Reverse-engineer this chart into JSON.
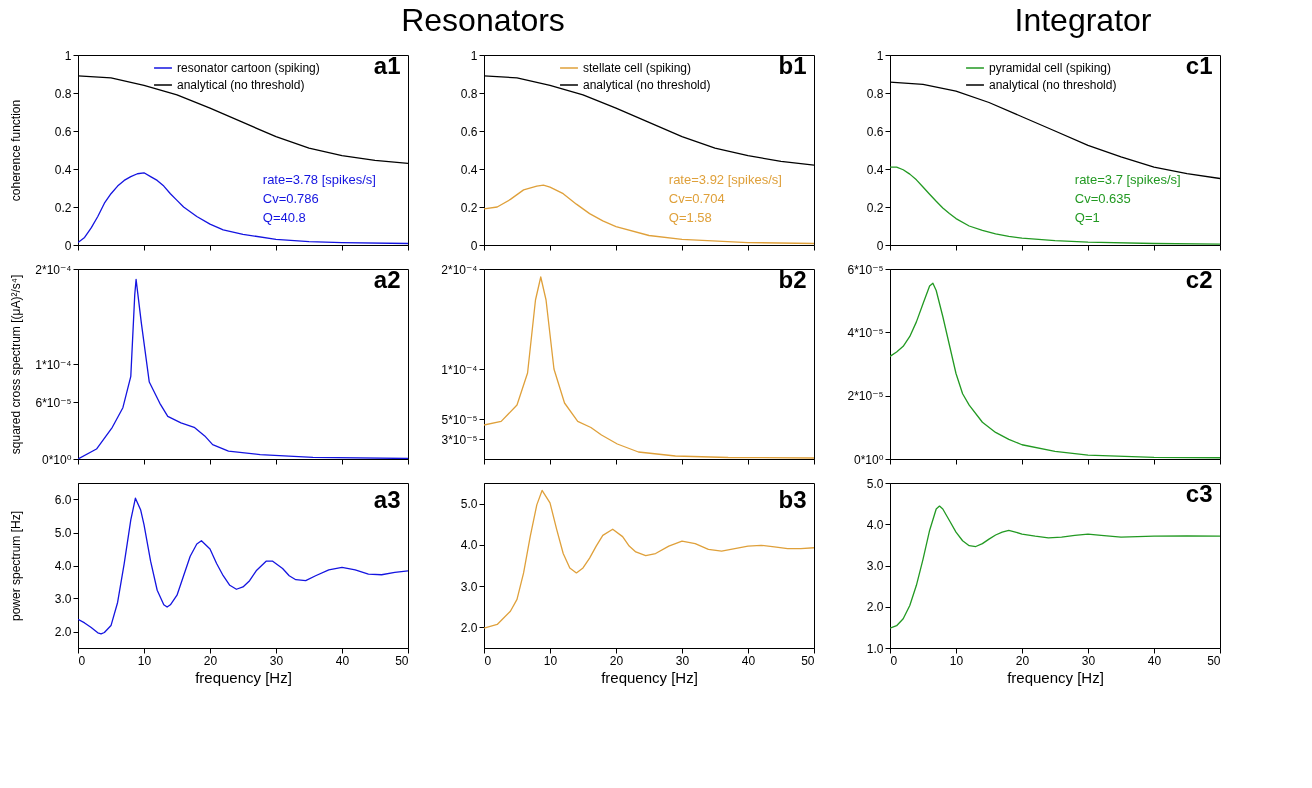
{
  "chart_data": [
    {
      "type": "other",
      "title": "Resonators"
    },
    {
      "type": "other",
      "title": "Integrator"
    },
    {
      "type": "line",
      "title": "a1",
      "ylabel": "coherence function",
      "xlim": [
        0,
        50
      ],
      "xticks": [
        0,
        10,
        20,
        30,
        40,
        50
      ],
      "ylim": [
        0,
        1
      ],
      "yticks": [
        0,
        0.2,
        0.4,
        0.6,
        0.8,
        1
      ],
      "tick_labels": "y",
      "legend": "top right",
      "annotations": [
        "rate=3.78 [spikes/s]",
        "Cv=0.786",
        "Q=40.8"
      ],
      "series": [
        {
          "name": "resonator cartoon (spiking)",
          "color": "#1414e0",
          "x": [
            0,
            1,
            2,
            3,
            4,
            5,
            6,
            7,
            8,
            9,
            10,
            11,
            12,
            13,
            14,
            15,
            16,
            18,
            20,
            22,
            25,
            30,
            35,
            40,
            50
          ],
          "values": [
            0.013,
            0.04,
            0.09,
            0.15,
            0.22,
            0.27,
            0.31,
            0.34,
            0.36,
            0.375,
            0.38,
            0.36,
            0.34,
            0.31,
            0.27,
            0.235,
            0.2,
            0.15,
            0.11,
            0.08,
            0.056,
            0.03,
            0.018,
            0.013,
            0.008
          ]
        },
        {
          "name": "analytical (no threshold)",
          "color": "#000000",
          "x": [
            0,
            5,
            10,
            15,
            20,
            25,
            30,
            35,
            40,
            45,
            50
          ],
          "values": [
            0.89,
            0.88,
            0.84,
            0.79,
            0.72,
            0.645,
            0.57,
            0.51,
            0.47,
            0.445,
            0.43
          ]
        }
      ]
    },
    {
      "type": "line",
      "title": "b1",
      "xlim": [
        0,
        50
      ],
      "xticks": [
        0,
        10,
        20,
        30,
        40,
        50
      ],
      "ylim": [
        0,
        1
      ],
      "yticks": [
        0,
        0.2,
        0.4,
        0.6,
        0.8,
        1
      ],
      "tick_labels": "y",
      "legend": "top right",
      "annotations": [
        "rate=3.92 [spikes/s]",
        "Cv=0.704",
        "Q=1.58"
      ],
      "series": [
        {
          "name": "stellate cell (spiking)",
          "color": "#dfa03a",
          "x": [
            0,
            2,
            4,
            6,
            8,
            9,
            10,
            12,
            14,
            16,
            18,
            20,
            25,
            30,
            40,
            50
          ],
          "values": [
            0.19,
            0.2,
            0.24,
            0.29,
            0.31,
            0.315,
            0.305,
            0.27,
            0.215,
            0.165,
            0.127,
            0.097,
            0.05,
            0.03,
            0.013,
            0.008
          ]
        },
        {
          "name": "analytical (no threshold)",
          "color": "#000000",
          "x": [
            0,
            5,
            10,
            15,
            20,
            25,
            30,
            35,
            40,
            45,
            50
          ],
          "values": [
            0.89,
            0.88,
            0.84,
            0.79,
            0.72,
            0.645,
            0.57,
            0.51,
            0.47,
            0.44,
            0.42
          ]
        }
      ]
    },
    {
      "type": "line",
      "title": "c1",
      "xlim": [
        0,
        50
      ],
      "xticks": [
        0,
        10,
        20,
        30,
        40,
        50
      ],
      "ylim": [
        0,
        1
      ],
      "yticks": [
        0,
        0.2,
        0.4,
        0.6,
        0.8,
        1
      ],
      "tick_labels": "y",
      "legend": "top right",
      "annotations": [
        "rate=3.7 [spikes/s]",
        "Cv=0.635",
        "Q=1"
      ],
      "series": [
        {
          "name": "pyramidal cell (spiking)",
          "color": "#229922",
          "x": [
            0,
            1,
            2,
            3,
            4,
            5,
            6,
            7,
            8,
            9,
            10,
            12,
            14,
            16,
            18,
            20,
            25,
            30,
            40,
            50
          ],
          "values": [
            0.41,
            0.41,
            0.396,
            0.373,
            0.343,
            0.305,
            0.267,
            0.23,
            0.195,
            0.166,
            0.139,
            0.1,
            0.077,
            0.059,
            0.045,
            0.036,
            0.023,
            0.015,
            0.008,
            0.005
          ]
        },
        {
          "name": "analytical (no threshold)",
          "color": "#000000",
          "x": [
            0,
            5,
            10,
            15,
            20,
            25,
            30,
            35,
            40,
            45,
            50
          ],
          "values": [
            0.857,
            0.845,
            0.81,
            0.75,
            0.675,
            0.6,
            0.524,
            0.464,
            0.41,
            0.376,
            0.35
          ]
        }
      ]
    },
    {
      "type": "line",
      "title": "a2",
      "ylabel": "squared cross spectrum [(μA)²/s⁴]",
      "xlim": [
        0,
        50
      ],
      "xticks": [
        0,
        10,
        20,
        30,
        40,
        50
      ],
      "ylim": [
        0,
        0.0002
      ],
      "yticks": [
        {
          "value": 0,
          "label": "0*10⁰"
        },
        {
          "value": 6e-05,
          "label": "6*10⁻⁵"
        },
        {
          "value": 0.0001,
          "label": "1*10⁻⁴"
        },
        {
          "value": 0.0002,
          "label": "2*10⁻⁴"
        }
      ],
      "tick_labels": "y",
      "series": [
        {
          "color": "#1414e0",
          "x": [
            0,
            2.8,
            5.2,
            6.8,
            8,
            8.6,
            8.8,
            9.6,
            10.8,
            12.4,
            13.6,
            15.6,
            17.6,
            19.2,
            20.4,
            22.8,
            27.6,
            35.6,
            50
          ],
          "values": [
            0,
            1.05e-05,
            3.34e-05,
            5.4e-05,
            8.7e-05,
            0.000173,
            0.000189,
            0.000143,
            8.1e-05,
            5.86e-05,
            4.49e-05,
            3.8e-05,
            3.34e-05,
            2.43e-05,
            1.51e-05,
            8.2e-06,
            4.6e-06,
            1.8e-06,
            5e-07
          ]
        }
      ]
    },
    {
      "type": "line",
      "title": "b2",
      "xlim": [
        0,
        50
      ],
      "xticks": [
        0,
        10,
        20,
        30,
        40,
        50
      ],
      "ylim": [
        1e-05,
        0.0002
      ],
      "yticks": [
        {
          "value": 3e-05,
          "label": "3*10⁻⁵"
        },
        {
          "value": 5e-05,
          "label": "5*10⁻⁵"
        },
        {
          "value": 0.0001,
          "label": "1*10⁻⁴"
        },
        {
          "value": 0.0002,
          "label": "2*10⁻⁴"
        }
      ],
      "tick_labels": "y",
      "series": [
        {
          "color": "#dfa03a",
          "x": [
            0,
            2.6,
            5,
            6.6,
            7.8,
            8.6,
            9.4,
            10.6,
            12.2,
            14.2,
            16.2,
            17.8,
            20.2,
            23.4,
            29,
            37,
            50
          ],
          "values": [
            4.4e-05,
            4.76e-05,
            6.4e-05,
            9.6e-05,
            0.000169,
            0.000192,
            0.000169,
            0.0001,
            6.6e-05,
            4.76e-05,
            4.15e-05,
            3.4e-05,
            2.5e-05,
            1.7e-05,
            1.3e-05,
            1.15e-05,
            1.1e-05
          ]
        }
      ]
    },
    {
      "type": "line",
      "title": "c2",
      "xlim": [
        0,
        50
      ],
      "xticks": [
        0,
        10,
        20,
        30,
        40,
        50
      ],
      "ylim": [
        0,
        6e-05
      ],
      "yticks": [
        {
          "value": 0,
          "label": "0*10⁰"
        },
        {
          "value": 2e-05,
          "label": "2*10⁻⁵"
        },
        {
          "value": 4e-05,
          "label": "4*10⁻⁵"
        },
        {
          "value": 6e-05,
          "label": "6*10⁻⁵"
        }
      ],
      "tick_labels": "y",
      "series": [
        {
          "color": "#229922",
          "x": [
            0,
            1,
            2,
            3,
            4,
            5,
            6,
            6.5,
            7,
            8,
            9,
            10,
            11,
            12,
            14,
            16,
            18,
            20,
            25,
            30,
            40,
            50
          ],
          "values": [
            3.24e-05,
            3.38e-05,
            3.56e-05,
            3.87e-05,
            4.33e-05,
            4.9e-05,
            5.46e-05,
            5.55e-05,
            5.32e-05,
            4.5e-05,
            3.6e-05,
            2.7e-05,
            2.06e-05,
            1.7e-05,
            1.16e-05,
            8.4e-06,
            6.2e-06,
            4.5e-06,
            2.4e-06,
            1.2e-06,
            5e-07,
            4e-07
          ]
        }
      ]
    },
    {
      "type": "line",
      "title": "a3",
      "xlabel": "frequency [Hz]",
      "ylabel": "power spectrum [Hz]",
      "xlim": [
        0,
        50
      ],
      "xticks": [
        0,
        10,
        20,
        30,
        40,
        50
      ],
      "ylim": [
        1.5,
        6.5
      ],
      "yticks": [
        {
          "value": 2,
          "label": "2.0"
        },
        {
          "value": 3,
          "label": "3.0"
        },
        {
          "value": 4,
          "label": "4.0"
        },
        {
          "value": 5,
          "label": "5.0"
        },
        {
          "value": 6,
          "label": "6.0"
        }
      ],
      "series": [
        {
          "color": "#1414e0",
          "x": [
            0,
            1,
            2,
            3,
            3.5,
            4,
            5,
            6,
            7,
            8,
            8.7,
            9.5,
            10,
            11,
            12,
            13,
            13.5,
            14,
            15,
            16,
            17,
            18,
            18.7,
            20,
            21,
            22,
            23,
            24,
            25,
            26,
            27,
            28.5,
            29.5,
            31,
            32,
            33,
            34.5,
            36,
            38,
            40,
            42,
            44,
            46,
            48,
            50
          ],
          "values": [
            2.37,
            2.26,
            2.12,
            1.96,
            1.93,
            1.97,
            2.18,
            2.88,
            4.06,
            5.38,
            6.04,
            5.68,
            5.24,
            4.13,
            3.25,
            2.81,
            2.74,
            2.81,
            3.1,
            3.69,
            4.28,
            4.65,
            4.75,
            4.5,
            4.06,
            3.69,
            3.4,
            3.28,
            3.35,
            3.54,
            3.84,
            4.13,
            4.13,
            3.91,
            3.69,
            3.57,
            3.54,
            3.69,
            3.87,
            3.94,
            3.87,
            3.74,
            3.72,
            3.79,
            3.84
          ]
        }
      ]
    },
    {
      "type": "line",
      "title": "b3",
      "xlabel": "frequency [Hz]",
      "xlim": [
        0,
        50
      ],
      "xticks": [
        0,
        10,
        20,
        30,
        40,
        50
      ],
      "ylim": [
        1.5,
        5.5
      ],
      "yticks": [
        {
          "value": 2,
          "label": "2.0"
        },
        {
          "value": 3,
          "label": "3.0"
        },
        {
          "value": 4,
          "label": "4.0"
        },
        {
          "value": 5,
          "label": "5.0"
        }
      ],
      "series": [
        {
          "color": "#dfa03a",
          "x": [
            0,
            2,
            4,
            5,
            6,
            7,
            8,
            8.8,
            10,
            11,
            12,
            13,
            14,
            15,
            16,
            17,
            18,
            19.5,
            21,
            22,
            23,
            24.5,
            26,
            28,
            30,
            32,
            34,
            36,
            38,
            40,
            42,
            44,
            46,
            48,
            50
          ],
          "values": [
            1.98,
            2.07,
            2.39,
            2.68,
            3.32,
            4.2,
            4.97,
            5.32,
            5.02,
            4.38,
            3.79,
            3.44,
            3.32,
            3.44,
            3.68,
            3.97,
            4.23,
            4.38,
            4.2,
            3.97,
            3.83,
            3.74,
            3.79,
            3.97,
            4.09,
            4.03,
            3.89,
            3.85,
            3.91,
            3.97,
            3.99,
            3.95,
            3.91,
            3.91,
            3.93
          ]
        }
      ]
    },
    {
      "type": "line",
      "title": "c3",
      "xlabel": "frequency [Hz]",
      "xlim": [
        0,
        50
      ],
      "xticks": [
        0,
        10,
        20,
        30,
        40,
        50
      ],
      "ylim": [
        1,
        5
      ],
      "yticks": [
        {
          "value": 1,
          "label": "1.0"
        },
        {
          "value": 2,
          "label": "2.0"
        },
        {
          "value": 3,
          "label": "3.0"
        },
        {
          "value": 4,
          "label": "4.0"
        },
        {
          "value": 5,
          "label": "5.0"
        }
      ],
      "series": [
        {
          "color": "#229922",
          "x": [
            0,
            1,
            2,
            3,
            4,
            5,
            6,
            7,
            7.5,
            8,
            9,
            10,
            11,
            12,
            13,
            14,
            15,
            16,
            17,
            18,
            19,
            20,
            22,
            24,
            26,
            28,
            30,
            32,
            35,
            40,
            45,
            50
          ],
          "values": [
            1.48,
            1.54,
            1.71,
            2.03,
            2.52,
            3.15,
            3.85,
            4.37,
            4.44,
            4.37,
            4.09,
            3.81,
            3.6,
            3.48,
            3.46,
            3.53,
            3.64,
            3.74,
            3.81,
            3.85,
            3.81,
            3.76,
            3.71,
            3.67,
            3.69,
            3.73,
            3.76,
            3.73,
            3.69,
            3.71,
            3.72,
            3.71
          ]
        }
      ]
    }
  ]
}
